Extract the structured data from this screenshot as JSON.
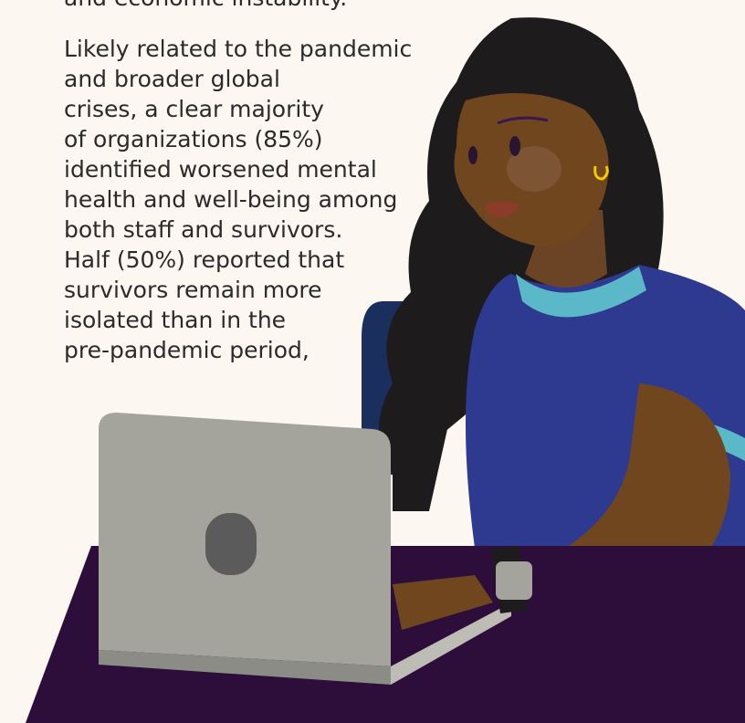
{
  "paragraphs": [
    {
      "lines": [
        "and economic instability."
      ]
    },
    {
      "lines": [
        "Likely related to the pandemic",
        "and broader global",
        "crises, a clear majority",
        "of organizations (85%)",
        "identified worsened mental",
        "health and well-being among",
        "both staff and survivors.",
        "Half (50%) reported that",
        "survivors remain more",
        "isolated than in the",
        "pre-pandemic period,"
      ]
    }
  ]
}
